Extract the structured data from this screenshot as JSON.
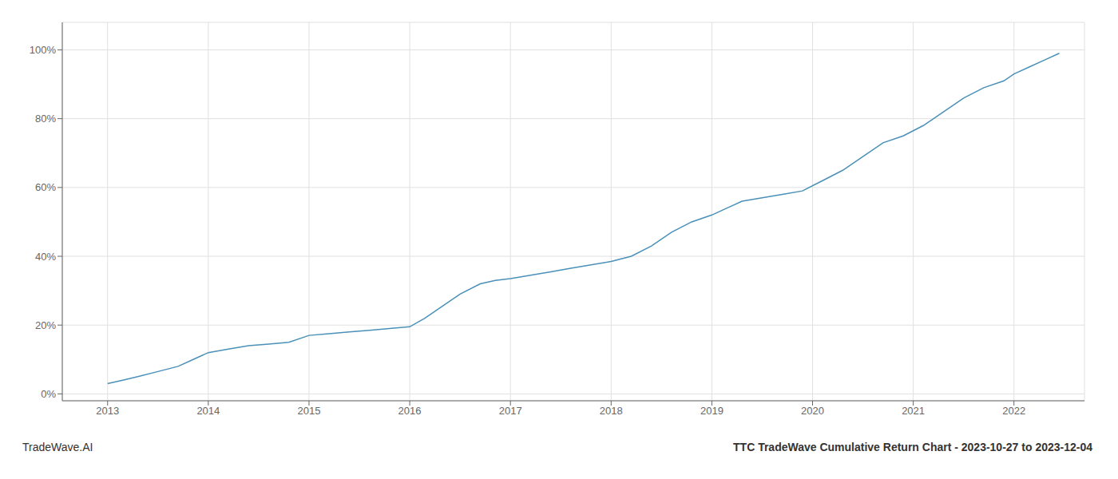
{
  "chart_data": {
    "type": "line",
    "title": "TTC TradeWave Cumulative Return Chart - 2023-10-27 to 2023-12-04",
    "annotations": [
      "TradeWave.AI"
    ],
    "color": "#4a90b8",
    "grid": true,
    "x": [
      2013.0,
      2013.15,
      2013.3,
      2013.5,
      2013.7,
      2013.85,
      2014.0,
      2014.2,
      2014.4,
      2014.6,
      2014.8,
      2015.0,
      2015.2,
      2015.4,
      2015.6,
      2015.8,
      2016.0,
      2016.15,
      2016.3,
      2016.5,
      2016.7,
      2016.85,
      2017.0,
      2017.2,
      2017.4,
      2017.6,
      2017.8,
      2018.0,
      2018.2,
      2018.4,
      2018.6,
      2018.8,
      2019.0,
      2019.15,
      2019.3,
      2019.5,
      2019.7,
      2019.9,
      2020.1,
      2020.3,
      2020.5,
      2020.7,
      2020.9,
      2021.1,
      2021.3,
      2021.5,
      2021.7,
      2021.9,
      2022.0,
      2022.15,
      2022.3,
      2022.45
    ],
    "values": [
      3,
      4,
      5,
      6.5,
      8,
      10,
      12,
      13,
      14,
      14.5,
      15,
      17,
      17.5,
      18,
      18.5,
      19,
      19.5,
      22,
      25,
      29,
      32,
      33,
      33.5,
      34.5,
      35.5,
      36.5,
      37.5,
      38.5,
      40,
      43,
      47,
      50,
      52,
      54,
      56,
      57,
      58,
      59,
      62,
      65,
      69,
      73,
      75,
      78,
      82,
      86,
      89,
      91,
      93,
      95,
      97,
      99
    ],
    "xlim": [
      2012.55,
      2022.7
    ],
    "xticks": [
      2013,
      2014,
      2015,
      2016,
      2017,
      2018,
      2019,
      2020,
      2021,
      2022
    ],
    "ylim": [
      -2,
      108
    ],
    "yticks": [
      {
        "value": 0,
        "label": "0%"
      },
      {
        "value": 20,
        "label": "20%"
      },
      {
        "value": 40,
        "label": "40%"
      },
      {
        "value": 60,
        "label": "60%"
      },
      {
        "value": 80,
        "label": "80%"
      },
      {
        "value": 100,
        "label": "100%"
      }
    ]
  }
}
